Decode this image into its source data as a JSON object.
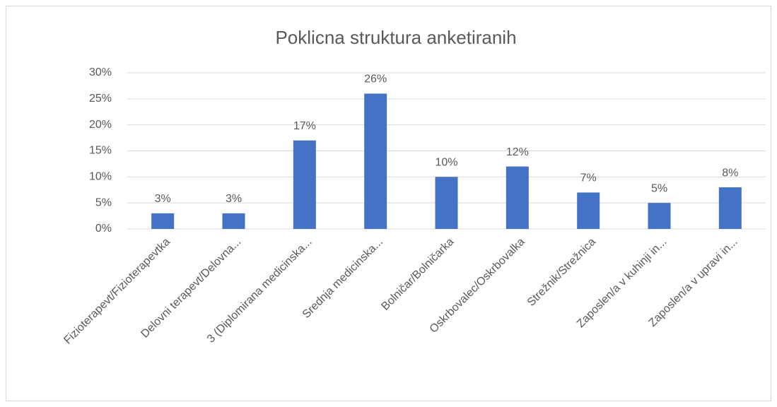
{
  "chart_data": {
    "type": "bar",
    "title": "Poklicna struktura anketiranih",
    "categories": [
      "Fizioterapevt/Fizioterapevtka",
      "Delovni terapevt/Delovna...",
      "3 (Diplomirana medicinska...",
      "Srednja medicinska...",
      "Bolničar/Bolničarka",
      "Oskrbovalec/Oskrbovalka",
      "Strežnik/Strežnica",
      "Zaposlen/a v kuhinji in...",
      "Zaposlen/a v upravi in..."
    ],
    "values": [
      3,
      3,
      17,
      26,
      10,
      12,
      7,
      5,
      8
    ],
    "value_labels": [
      "3%",
      "3%",
      "17%",
      "26%",
      "10%",
      "12%",
      "7%",
      "5%",
      "8%"
    ],
    "color": "#4472c4",
    "ylim": [
      0,
      30
    ],
    "yticks": [
      {
        "value": 0,
        "label": "0%"
      },
      {
        "value": 5,
        "label": "5%"
      },
      {
        "value": 10,
        "label": "10%"
      },
      {
        "value": 15,
        "label": "15%"
      },
      {
        "value": 20,
        "label": "20%"
      },
      {
        "value": 25,
        "label": "25%"
      },
      {
        "value": 30,
        "label": "30%"
      }
    ],
    "grid": true
  }
}
